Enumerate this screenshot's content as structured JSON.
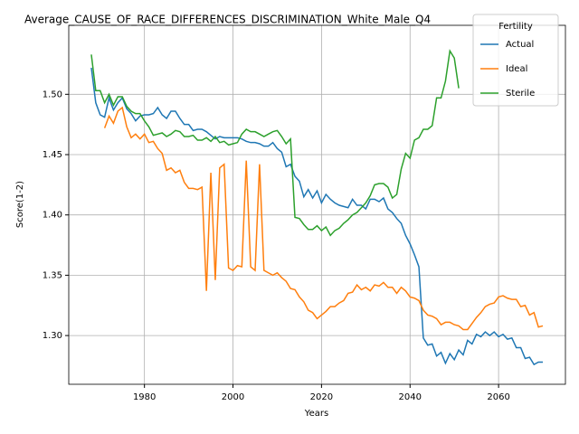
{
  "chart_data": {
    "type": "line",
    "title": "Average_CAUSE_OF_RACE_DIFFERENCES_DISCRIMINATION_White_Male_Q4",
    "xlabel": "Years",
    "ylabel": "Score(1-2)",
    "legend_title": "Fertility",
    "legend": "upper right",
    "grid": true,
    "xlim": [
      1962.9,
      2075.1
    ],
    "ylim": [
      1.2596,
      1.5572
    ],
    "xticks": [
      1980,
      2000,
      2020,
      2040,
      2060
    ],
    "yticks": [
      {
        "value": 1.3,
        "label": "1.30"
      },
      {
        "value": 1.35,
        "label": "1.35"
      },
      {
        "value": 1.4,
        "label": "1.40"
      },
      {
        "value": 1.45,
        "label": "1.45"
      },
      {
        "value": 1.5,
        "label": "1.50"
      }
    ],
    "x": [
      1968,
      1969,
      1970,
      1971,
      1972,
      1973,
      1974,
      1975,
      1976,
      1977,
      1978,
      1979,
      1980,
      1981,
      1982,
      1983,
      1984,
      1985,
      1986,
      1987,
      1988,
      1989,
      1990,
      1991,
      1992,
      1993,
      1994,
      1995,
      1996,
      1997,
      1998,
      1999,
      2000,
      2001,
      2002,
      2003,
      2004,
      2005,
      2006,
      2007,
      2008,
      2009,
      2010,
      2011,
      2012,
      2013,
      2014,
      2015,
      2016,
      2017,
      2018,
      2019,
      2020,
      2021,
      2022,
      2023,
      2024,
      2025,
      2026,
      2027,
      2028,
      2029,
      2030,
      2031,
      2032,
      2033,
      2034,
      2035,
      2036,
      2037,
      2038,
      2039,
      2040,
      2041,
      2042,
      2043,
      2044,
      2045,
      2046,
      2047,
      2048,
      2049,
      2050,
      2051,
      2052,
      2053,
      2054,
      2055,
      2056,
      2057,
      2058,
      2059,
      2060,
      2061,
      2062,
      2063,
      2064,
      2065,
      2066,
      2067,
      2068,
      2069,
      2070
    ],
    "series": [
      {
        "name": "Actual",
        "color": "#1f77b4",
        "values": [
          1.522,
          1.493,
          1.483,
          1.481,
          1.497,
          1.487,
          1.493,
          1.497,
          1.488,
          1.484,
          1.478,
          1.482,
          1.483,
          1.483,
          1.484,
          1.489,
          1.483,
          1.48,
          1.486,
          1.486,
          1.48,
          1.475,
          1.475,
          1.47,
          1.471,
          1.471,
          1.469,
          1.466,
          1.463,
          1.465,
          1.464,
          1.464,
          1.464,
          1.464,
          1.463,
          1.461,
          1.46,
          1.46,
          1.459,
          1.457,
          1.457,
          1.46,
          1.455,
          1.452,
          1.44,
          1.442,
          1.432,
          1.428,
          1.415,
          1.421,
          1.414,
          1.42,
          1.41,
          1.417,
          1.413,
          1.41,
          1.408,
          1.407,
          1.406,
          1.413,
          1.408,
          1.408,
          1.405,
          1.413,
          1.413,
          1.411,
          1.414,
          1.405,
          1.402,
          1.397,
          1.393,
          1.383,
          1.376,
          1.367,
          1.357,
          1.298,
          1.292,
          1.293,
          1.283,
          1.286,
          1.277,
          1.285,
          1.28,
          1.288,
          1.284,
          1.296,
          1.293,
          1.301,
          1.299,
          1.303,
          1.3,
          1.303,
          1.299,
          1.301,
          1.297,
          1.298,
          1.29,
          1.29,
          1.281,
          1.282,
          1.276,
          1.278,
          1.278
        ]
      },
      {
        "name": "Ideal",
        "color": "#ff7f0e",
        "values": [
          null,
          null,
          null,
          1.472,
          1.482,
          1.476,
          1.486,
          1.489,
          1.473,
          1.464,
          1.467,
          1.463,
          1.467,
          1.46,
          1.461,
          1.455,
          1.451,
          1.437,
          1.439,
          1.435,
          1.437,
          1.427,
          1.422,
          1.422,
          1.421,
          1.423,
          1.337,
          1.435,
          1.346,
          1.439,
          1.442,
          1.356,
          1.354,
          1.358,
          1.357,
          1.445,
          1.357,
          1.354,
          1.442,
          1.354,
          1.352,
          1.35,
          1.352,
          1.348,
          1.345,
          1.339,
          1.338,
          1.332,
          1.328,
          1.321,
          1.319,
          1.314,
          1.317,
          1.32,
          1.324,
          1.324,
          1.327,
          1.329,
          1.335,
          1.336,
          1.342,
          1.338,
          1.34,
          1.337,
          1.342,
          1.341,
          1.344,
          1.34,
          1.34,
          1.335,
          1.34,
          1.337,
          1.332,
          1.331,
          1.329,
          1.321,
          1.317,
          1.316,
          1.314,
          1.309,
          1.311,
          1.311,
          1.309,
          1.308,
          1.305,
          1.305,
          1.31,
          1.315,
          1.319,
          1.324,
          1.326,
          1.327,
          1.332,
          1.333,
          1.331,
          1.33,
          1.33,
          1.324,
          1.325,
          1.317,
          1.319,
          1.307,
          1.308
        ]
      },
      {
        "name": "Sterile",
        "color": "#2ca02c",
        "values": [
          1.533,
          1.503,
          1.503,
          1.493,
          1.5,
          1.491,
          1.498,
          1.498,
          1.49,
          1.486,
          1.484,
          1.484,
          1.478,
          1.473,
          1.466,
          1.467,
          1.468,
          1.465,
          1.467,
          1.47,
          1.469,
          1.465,
          1.465,
          1.466,
          1.462,
          1.462,
          1.464,
          1.461,
          1.465,
          1.46,
          1.461,
          1.458,
          1.459,
          1.46,
          1.467,
          1.471,
          1.469,
          1.469,
          1.467,
          1.465,
          1.467,
          1.469,
          1.47,
          1.465,
          1.459,
          1.463,
          1.398,
          1.397,
          1.392,
          1.388,
          1.388,
          1.391,
          1.387,
          1.39,
          1.383,
          1.387,
          1.389,
          1.393,
          1.396,
          1.4,
          1.402,
          1.406,
          1.41,
          1.416,
          1.425,
          1.426,
          1.426,
          1.423,
          1.414,
          1.417,
          1.438,
          1.451,
          1.447,
          1.462,
          1.464,
          1.471,
          1.471,
          1.474,
          1.497,
          1.497,
          1.511,
          1.536,
          1.53,
          1.505,
          null,
          null,
          null,
          null,
          null,
          null,
          null,
          null,
          null,
          null,
          null,
          null,
          null,
          null,
          null,
          null,
          null,
          null,
          null
        ]
      }
    ]
  }
}
